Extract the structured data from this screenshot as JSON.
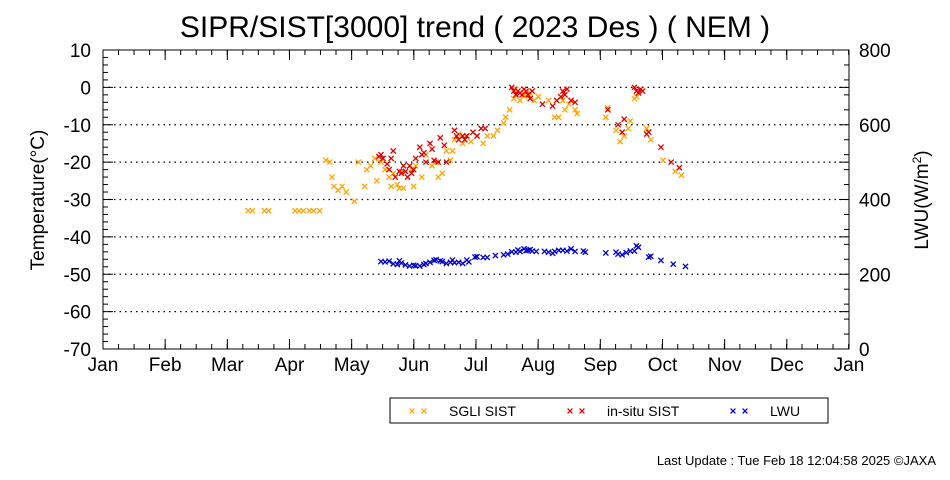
{
  "chart_data": {
    "type": "scatter",
    "title": "SIPR/SIST[3000] trend ( 2023 Des ) ( NEM )",
    "ylabel": "Temperature(°C)",
    "y2label_prefix": "LWU(W/m",
    "y2label_sup": "2",
    "y2label_suffix": ")",
    "ylim": [
      -70,
      10
    ],
    "yticks": [
      "10",
      "0",
      "-10",
      "-20",
      "-30",
      "-40",
      "-50",
      "-60",
      "-70"
    ],
    "y2lim": [
      0,
      800
    ],
    "y2ticks": [
      "800",
      "600",
      "400",
      "200",
      "0"
    ],
    "x_range_days": [
      0,
      365
    ],
    "xticks": [
      "Jan",
      "Feb",
      "Mar",
      "Apr",
      "May",
      "Jun",
      "Jul",
      "Aug",
      "Sep",
      "Oct",
      "Nov",
      "Dec",
      "Jan"
    ],
    "grid": "horizontal dotted",
    "legend_placement": "bottom-right",
    "series": [
      {
        "name": "SGLI SIST",
        "color": "#ffa500",
        "axis": "left",
        "x_unit": "day of year",
        "points": [
          [
            71,
            -33
          ],
          [
            73,
            -33
          ],
          [
            79,
            -33
          ],
          [
            81,
            -33
          ],
          [
            94,
            -33
          ],
          [
            96,
            -33
          ],
          [
            98,
            -33
          ],
          [
            101,
            -33
          ],
          [
            103,
            -33
          ],
          [
            106,
            -33
          ],
          [
            109,
            -19.5
          ],
          [
            111,
            -20
          ],
          [
            112,
            -24
          ],
          [
            113,
            -26.5
          ],
          [
            115,
            -27.5
          ],
          [
            117,
            -26.5
          ],
          [
            119,
            -28
          ],
          [
            123,
            -30.5
          ],
          [
            125,
            -20
          ],
          [
            128,
            -26.5
          ],
          [
            129,
            -22
          ],
          [
            131,
            -21
          ],
          [
            133,
            -19
          ],
          [
            134,
            -25
          ],
          [
            136,
            -20
          ],
          [
            138,
            -22
          ],
          [
            140,
            -24
          ],
          [
            141,
            -26.5
          ],
          [
            142,
            -23
          ],
          [
            144,
            -26
          ],
          [
            145,
            -27
          ],
          [
            146,
            -22.5
          ],
          [
            147,
            -27
          ],
          [
            149,
            -24
          ],
          [
            151,
            -22
          ],
          [
            152,
            -26.5
          ],
          [
            153,
            -21
          ],
          [
            156,
            -24
          ],
          [
            158,
            -18
          ],
          [
            161,
            -21
          ],
          [
            163,
            -20
          ],
          [
            164,
            -24
          ],
          [
            166,
            -23
          ],
          [
            168,
            -17
          ],
          [
            170,
            -19.5
          ],
          [
            171,
            -17
          ],
          [
            172,
            -14
          ],
          [
            174,
            -12.5
          ],
          [
            176,
            -15
          ],
          [
            178,
            -13
          ],
          [
            180,
            -14.5
          ],
          [
            183,
            -13
          ],
          [
            186,
            -15
          ],
          [
            188,
            -13
          ],
          [
            191,
            -13
          ],
          [
            193,
            -11.5
          ],
          [
            196,
            -9.5
          ],
          [
            197,
            -8
          ],
          [
            199,
            -6
          ],
          [
            201,
            -3
          ],
          [
            202,
            -0.5
          ],
          [
            204,
            -3.5
          ],
          [
            206,
            -2
          ],
          [
            208,
            -2.5
          ],
          [
            209,
            -1.5
          ],
          [
            211,
            -3.5
          ],
          [
            213,
            -2.5
          ],
          [
            218,
            -3.5
          ],
          [
            221,
            -8
          ],
          [
            223,
            -8
          ],
          [
            225,
            -3.5
          ],
          [
            226,
            -6
          ],
          [
            228,
            -4.5
          ],
          [
            231,
            -6
          ],
          [
            232,
            -7
          ],
          [
            246,
            -8
          ],
          [
            247,
            -5.5
          ],
          [
            251,
            -11.5
          ],
          [
            253,
            -14.5
          ],
          [
            255,
            -13
          ],
          [
            257,
            -11
          ],
          [
            258,
            -9
          ],
          [
            260,
            -3
          ],
          [
            261,
            -2.5
          ],
          [
            266,
            -11
          ],
          [
            268,
            -14
          ],
          [
            274,
            -19.5
          ],
          [
            280,
            -22.5
          ],
          [
            283,
            -23.5
          ]
        ]
      },
      {
        "name": "in-situ SIST",
        "color": "#e00000",
        "axis": "left",
        "x_unit": "day of year",
        "points": [
          [
            135,
            -18.5
          ],
          [
            136,
            -18
          ],
          [
            137,
            -19
          ],
          [
            139,
            -20.5
          ],
          [
            140,
            -22
          ],
          [
            141,
            -19
          ],
          [
            142,
            -17
          ],
          [
            143,
            -24
          ],
          [
            145,
            -22.5
          ],
          [
            146,
            -23
          ],
          [
            147,
            -21
          ],
          [
            148,
            -22.5
          ],
          [
            149,
            -24
          ],
          [
            150,
            -21
          ],
          [
            151,
            -23
          ],
          [
            152,
            -22
          ],
          [
            153,
            -19
          ],
          [
            155,
            -16
          ],
          [
            156,
            -18
          ],
          [
            157,
            -17.5
          ],
          [
            158,
            -20
          ],
          [
            160,
            -15
          ],
          [
            161,
            -16.5
          ],
          [
            162,
            -19.5
          ],
          [
            164,
            -20
          ],
          [
            165,
            -13.5
          ],
          [
            167,
            -15.5
          ],
          [
            168,
            -20
          ],
          [
            172,
            -11.5
          ],
          [
            173,
            -13
          ],
          [
            174,
            -14
          ],
          [
            176,
            -13
          ],
          [
            177,
            -14
          ],
          [
            178,
            -13
          ],
          [
            181,
            -12
          ],
          [
            183,
            -13
          ],
          [
            185,
            -11
          ],
          [
            187,
            -11
          ],
          [
            200,
            0
          ],
          [
            201,
            -1
          ],
          [
            202,
            -2
          ],
          [
            203,
            -1
          ],
          [
            204,
            -1.5
          ],
          [
            205,
            -2
          ],
          [
            206,
            -0.5
          ],
          [
            207,
            -1
          ],
          [
            208,
            -2
          ],
          [
            209,
            -3
          ],
          [
            210,
            -1
          ],
          [
            215,
            -4.5
          ],
          [
            220,
            -5
          ],
          [
            222,
            -3.5
          ],
          [
            224,
            -2.5
          ],
          [
            225,
            -1
          ],
          [
            226,
            -2
          ],
          [
            227,
            -0.5
          ],
          [
            229,
            -3.5
          ],
          [
            231,
            -4
          ],
          [
            247,
            -6
          ],
          [
            252,
            -10
          ],
          [
            254,
            -12
          ],
          [
            255,
            -8.5
          ],
          [
            260,
            0
          ],
          [
            261,
            -1
          ],
          [
            262,
            -1.5
          ],
          [
            263,
            -0.5
          ],
          [
            264,
            -1
          ],
          [
            266,
            -12.5
          ],
          [
            267,
            -12
          ],
          [
            273,
            -16
          ],
          [
            278,
            -20
          ],
          [
            282,
            -21.5
          ]
        ]
      },
      {
        "name": "LWU",
        "color": "#0000c8",
        "axis": "right",
        "x_unit": "day of year",
        "points": [
          [
            136,
            234
          ],
          [
            138,
            233
          ],
          [
            140,
            235
          ],
          [
            142,
            228
          ],
          [
            144,
            226
          ],
          [
            145,
            236
          ],
          [
            146,
            230
          ],
          [
            148,
            225
          ],
          [
            150,
            222
          ],
          [
            152,
            224
          ],
          [
            153,
            223
          ],
          [
            155,
            222
          ],
          [
            157,
            226
          ],
          [
            158,
            229
          ],
          [
            160,
            232
          ],
          [
            162,
            237
          ],
          [
            163,
            239
          ],
          [
            165,
            236
          ],
          [
            166,
            234
          ],
          [
            168,
            229
          ],
          [
            170,
            232
          ],
          [
            171,
            238
          ],
          [
            172,
            231
          ],
          [
            174,
            232
          ],
          [
            176,
            229
          ],
          [
            178,
            238
          ],
          [
            179,
            233
          ],
          [
            182,
            246
          ],
          [
            183,
            247
          ],
          [
            186,
            245
          ],
          [
            188,
            245
          ],
          [
            192,
            250
          ],
          [
            196,
            252
          ],
          [
            198,
            254
          ],
          [
            200,
            260
          ],
          [
            202,
            259
          ],
          [
            203,
            265
          ],
          [
            204,
            261
          ],
          [
            206,
            268
          ],
          [
            207,
            263
          ],
          [
            208,
            264
          ],
          [
            209,
            266
          ],
          [
            210,
            262
          ],
          [
            212,
            261
          ],
          [
            216,
            261
          ],
          [
            218,
            259
          ],
          [
            220,
            256
          ],
          [
            221,
            261
          ],
          [
            223,
            264
          ],
          [
            225,
            264
          ],
          [
            227,
            262
          ],
          [
            229,
            268
          ],
          [
            231,
            261
          ],
          [
            235,
            262
          ],
          [
            236,
            259
          ],
          [
            246,
            257
          ],
          [
            251,
            259
          ],
          [
            252,
            254
          ],
          [
            254,
            252
          ],
          [
            256,
            258
          ],
          [
            258,
            262
          ],
          [
            260,
            262
          ],
          [
            261,
            276
          ],
          [
            262,
            272
          ],
          [
            267,
            246
          ],
          [
            268,
            248
          ],
          [
            273,
            237
          ],
          [
            279,
            227
          ],
          [
            285,
            221
          ]
        ]
      }
    ]
  },
  "legend": {
    "items": [
      {
        "label": "SGLI SIST",
        "color": "#ffa500"
      },
      {
        "label": "in-situ SIST",
        "color": "#e00000"
      },
      {
        "label": "LWU",
        "color": "#0000c8"
      }
    ]
  },
  "footer": {
    "last_update": "Last Update : Tue Feb 18 12:04:58 2025  ©JAXA"
  }
}
